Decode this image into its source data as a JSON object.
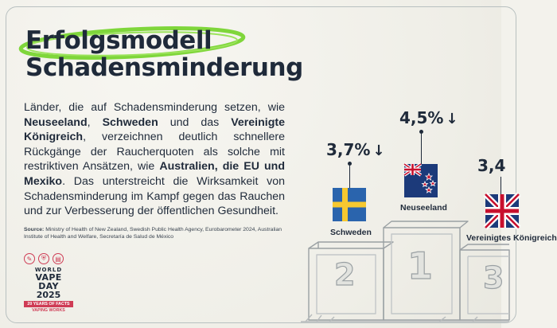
{
  "title": {
    "line1": "Erfolgsmodell",
    "line2": "Schadensminderung"
  },
  "body": {
    "parts": [
      {
        "text": "Länder, die auf Schadensminderung setzen, wie ",
        "bold": false
      },
      {
        "text": "Neuseeland",
        "bold": true
      },
      {
        "text": ", ",
        "bold": false
      },
      {
        "text": "Schweden",
        "bold": true
      },
      {
        "text": " und das ",
        "bold": false
      },
      {
        "text": "Vereinigte Königreich",
        "bold": true
      },
      {
        "text": ", verzeichnen deutlich schnellere Rückgänge der Raucherquoten als solche mit restriktiven Ansätzen, wie ",
        "bold": false
      },
      {
        "text": "Australien, die EU und Mexiko",
        "bold": true
      },
      {
        "text": ". Das unterstreicht die Wirksamkeit von Schadensminderung im Kampf gegen das Rauchen und zur Verbesserung der öffentlichen Gesundheit.",
        "bold": false
      }
    ]
  },
  "source": {
    "label": "Source:",
    "text": " Ministry of Health of New Zealand, Swedish Public Health Agency, Eurobarometer 2024, Australian Institute of Health and Welfare, Secretaría de Salud de México"
  },
  "logo": {
    "line1": "WORLD",
    "line2": "VAPE DAY",
    "line3": "2025",
    "badge": "20 YEARS OF FACTS",
    "tagline": "VAPING WORKS"
  },
  "podium": {
    "places": [
      "2",
      "1",
      "3"
    ]
  },
  "countries": [
    {
      "name": "Schweden",
      "value": "3,7%",
      "arrow": "↓"
    },
    {
      "name": "Neuseeland",
      "value": "4,5%",
      "arrow": "↓"
    },
    {
      "name": "Vereinigtes Königreich",
      "value": "3,4",
      "arrow": ""
    }
  ],
  "colors": {
    "navy": "#1f2a3a",
    "accent_green": "#7fd63b",
    "brand_red": "#cf3c55"
  }
}
